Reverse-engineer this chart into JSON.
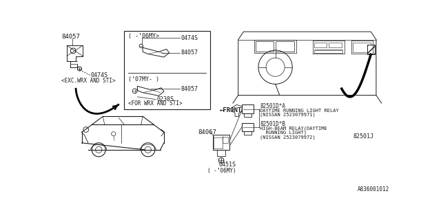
{
  "bg_color": "#ffffff",
  "line_color": "#1a1a1a",
  "font_family": "monospace",
  "diagram_id": "A836001012",
  "part_number_ref": "82501J",
  "labels": {
    "top_left_part": "84057",
    "top_left_screw": "0474S",
    "top_left_caption": "<EXC.WRX AND STI>",
    "box_title_top": "( -’06MY>",
    "box_part1": "0474S",
    "box_part2": "84057",
    "box_title_bottom": "(’07MY- )",
    "box_part3": "84057",
    "box_part4": "0238S",
    "box_caption": "<FOR WRX AND STI>",
    "car_part": "84067",
    "car_screw": "0451S",
    "car_caption": "( -’06MY)",
    "relay1_id": "82501D*A",
    "relay1_name": "DAYTIME RUNNING LIGHT RELAY",
    "relay1_nissan": "(NISSAN 2523079971)",
    "relay2_id": "82501D*B",
    "relay2_name1": "HIGH-BEAM RELAY(DAYTIME",
    "relay2_name2": "  RUNNING LIGHT)",
    "relay2_nissan": "(NISSAN 2523079972)",
    "front_label": "←FRONT"
  }
}
